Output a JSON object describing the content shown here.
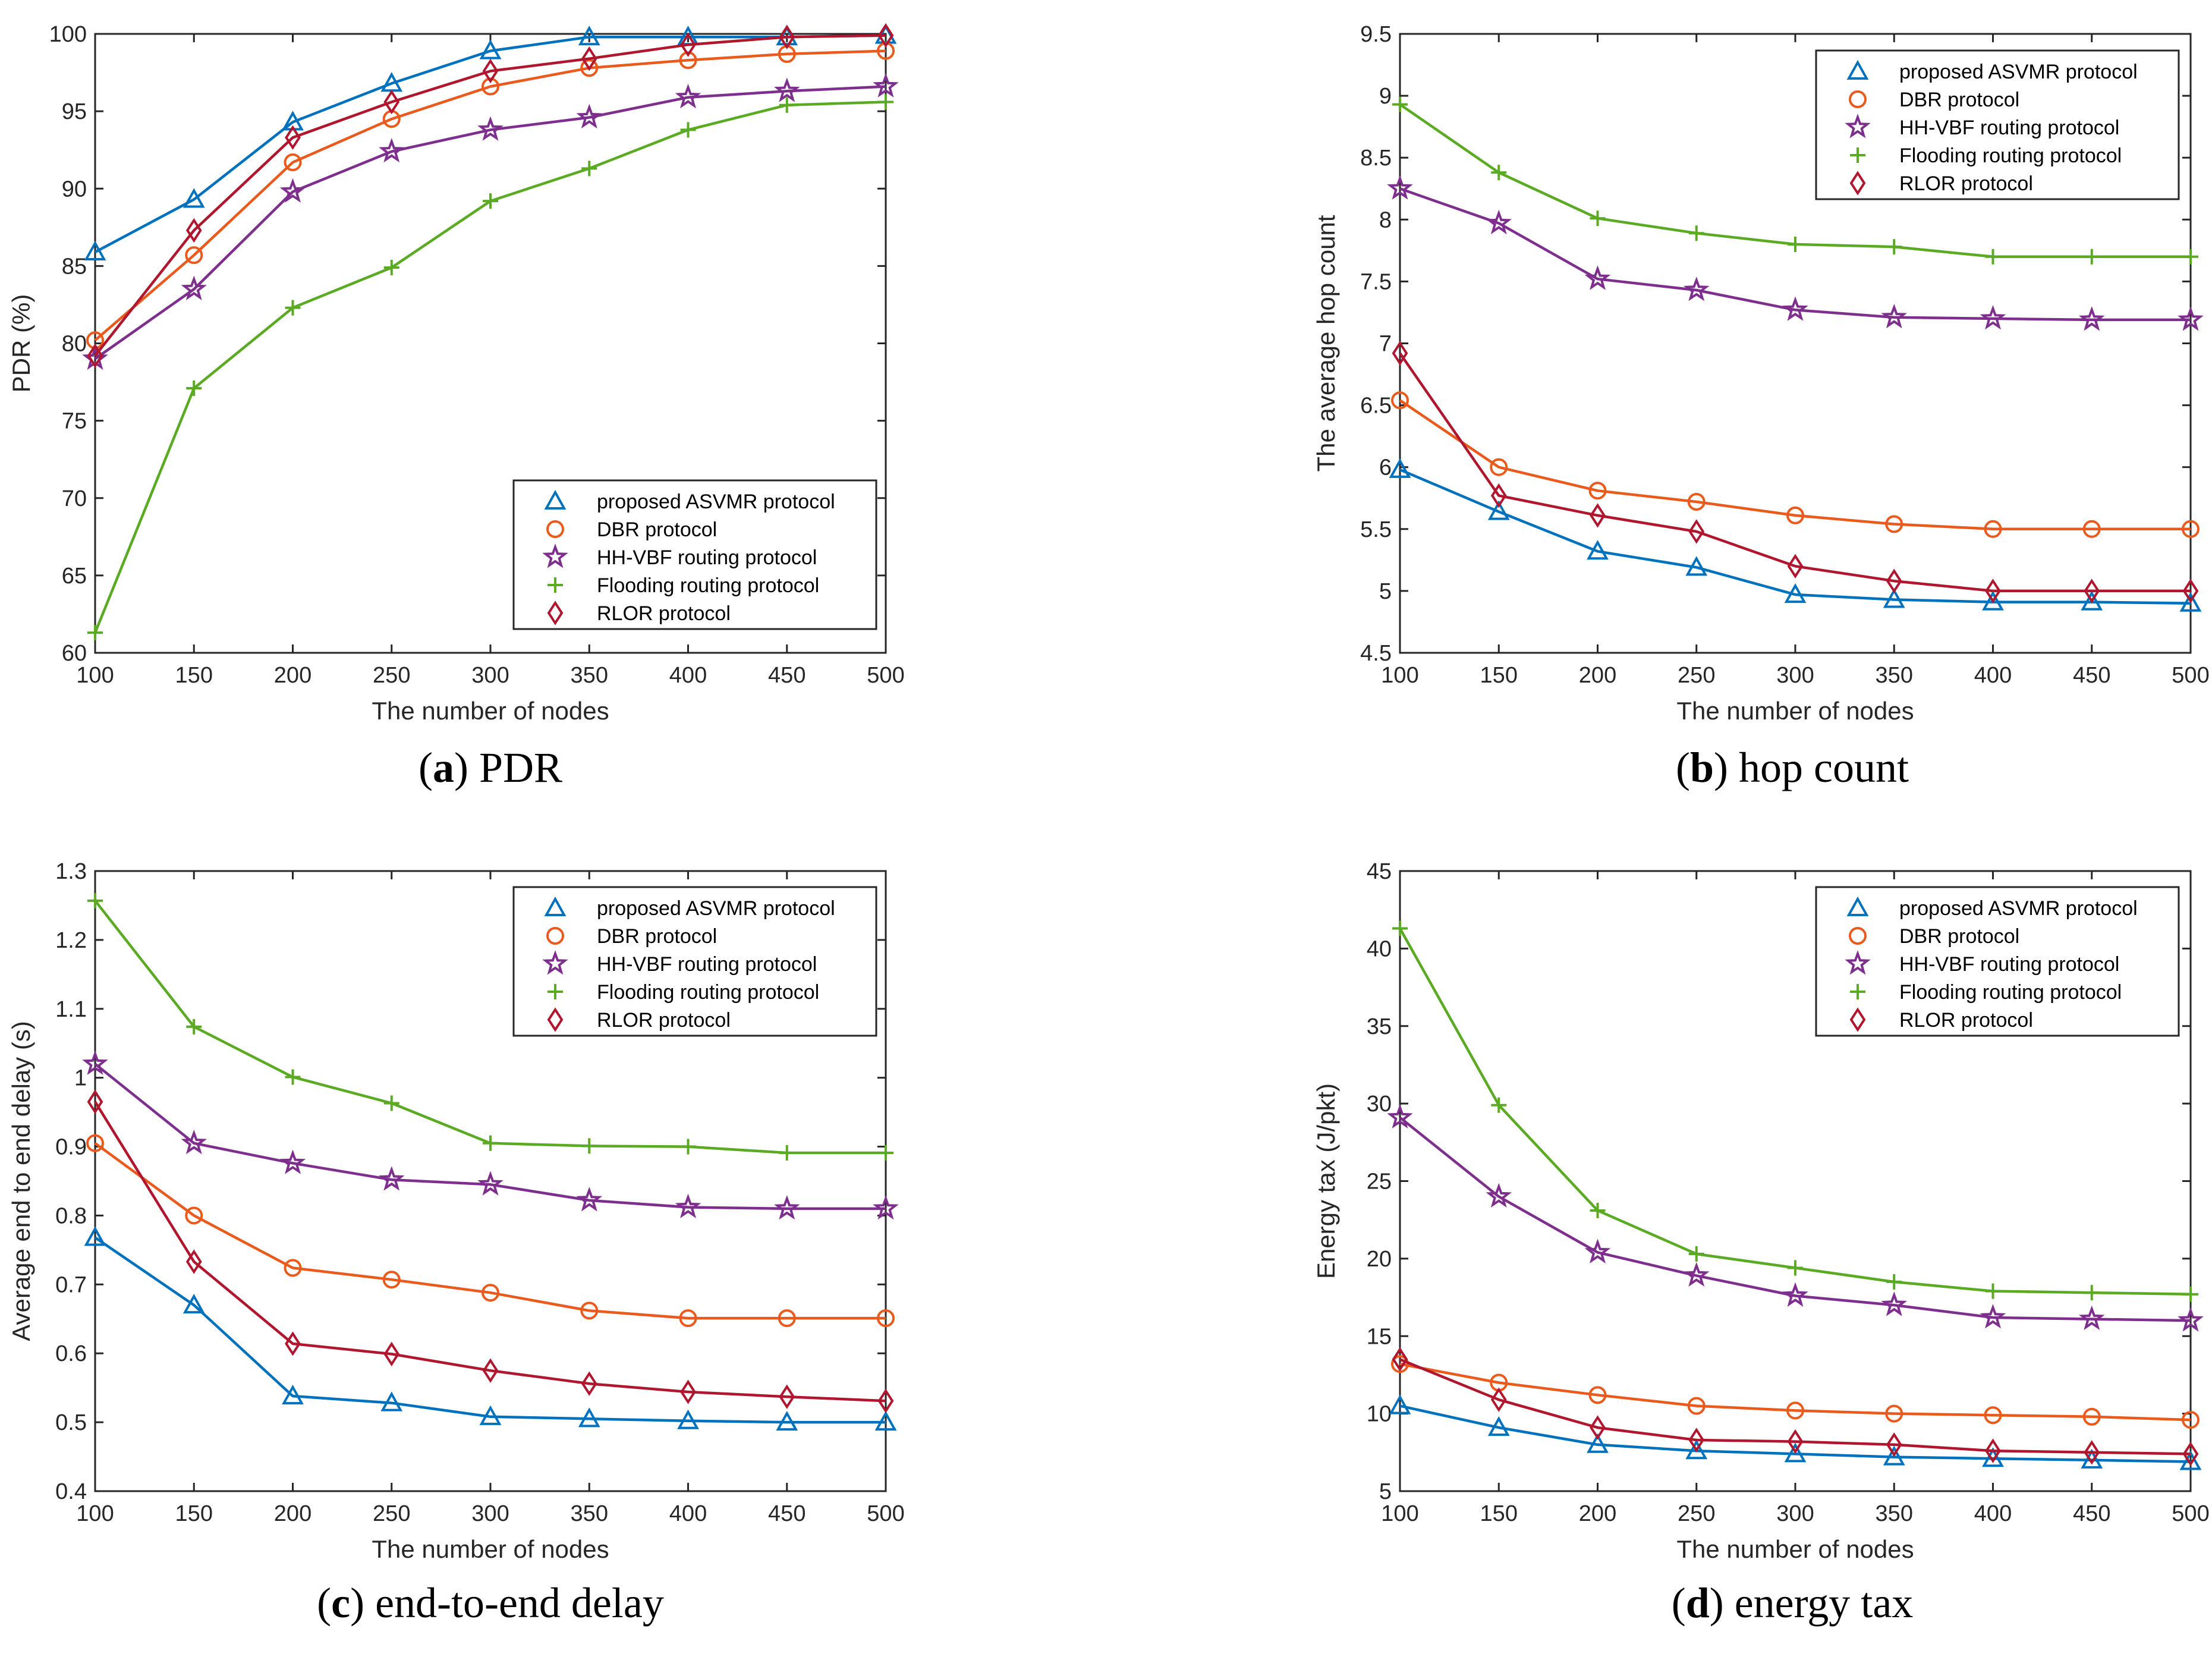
{
  "chart_data": [
    {
      "type": "line",
      "title": "PDR",
      "label_letter": "a",
      "xlabel": "The number of nodes",
      "ylabel": "PDR (%)",
      "xlim": [
        100,
        500
      ],
      "ylim": [
        60,
        100
      ],
      "x": [
        100,
        150,
        200,
        250,
        300,
        350,
        400,
        450,
        500
      ],
      "xticks": [
        "100",
        "150",
        "200",
        "250",
        "300",
        "350",
        "400",
        "450",
        "500"
      ],
      "yticks": [
        "60",
        "65",
        "70",
        "75",
        "80",
        "85",
        "90",
        "95",
        "100"
      ],
      "ytick_values": [
        60,
        65,
        70,
        75,
        80,
        85,
        90,
        95,
        100
      ],
      "legend_position": "bottom-right",
      "series": [
        {
          "name": "proposed ASVMR protocol",
          "marker": "triangle",
          "color": "#0072BD",
          "values": [
            85.9,
            89.3,
            94.3,
            96.8,
            98.9,
            99.8,
            99.8,
            99.8,
            99.9
          ]
        },
        {
          "name": "DBR protocol",
          "marker": "circle",
          "color": "#EA5A1C",
          "values": [
            80.2,
            85.7,
            91.7,
            94.5,
            96.6,
            97.8,
            98.3,
            98.7,
            98.9
          ]
        },
        {
          "name": "HH-VBF routing protocol",
          "marker": "star",
          "color": "#7E2F8E",
          "values": [
            79.0,
            83.5,
            89.8,
            92.4,
            93.8,
            94.6,
            95.9,
            96.3,
            96.6
          ]
        },
        {
          "name": "Flooding routing protocol",
          "marker": "plus",
          "color": "#5AAA23",
          "values": [
            61.3,
            77.1,
            82.3,
            84.9,
            89.2,
            91.3,
            93.8,
            95.4,
            95.6
          ]
        },
        {
          "name": "RLOR protocol",
          "marker": "diamond",
          "color": "#B0162E",
          "values": [
            79.2,
            87.3,
            93.3,
            95.6,
            97.6,
            98.4,
            99.3,
            99.8,
            99.9
          ]
        }
      ]
    },
    {
      "type": "line",
      "title": "hop count",
      "label_letter": "b",
      "xlabel": "The number of nodes",
      "ylabel": "The average hop count",
      "xlim": [
        100,
        500
      ],
      "ylim": [
        4.5,
        9.5
      ],
      "x": [
        100,
        150,
        200,
        250,
        300,
        350,
        400,
        450,
        500
      ],
      "xticks": [
        "100",
        "150",
        "200",
        "250",
        "300",
        "350",
        "400",
        "450",
        "500"
      ],
      "yticks": [
        "4.5",
        "5",
        "5.5",
        "6",
        "6.5",
        "7",
        "7.5",
        "8",
        "8.5",
        "9",
        "9.5"
      ],
      "ytick_values": [
        4.5,
        5,
        5.5,
        6,
        6.5,
        7,
        7.5,
        8,
        8.5,
        9,
        9.5
      ],
      "legend_position": "top-right",
      "series": [
        {
          "name": "proposed ASVMR protocol",
          "marker": "triangle",
          "color": "#0072BD",
          "values": [
            5.98,
            5.64,
            5.32,
            5.19,
            4.97,
            4.93,
            4.91,
            4.91,
            4.9
          ]
        },
        {
          "name": "DBR protocol",
          "marker": "circle",
          "color": "#EA5A1C",
          "values": [
            6.54,
            6.0,
            5.81,
            5.72,
            5.61,
            5.54,
            5.5,
            5.5,
            5.5
          ]
        },
        {
          "name": "HH-VBF routing protocol",
          "marker": "star",
          "color": "#7E2F8E",
          "values": [
            8.25,
            7.97,
            7.52,
            7.43,
            7.27,
            7.21,
            7.2,
            7.19,
            7.19
          ]
        },
        {
          "name": "Flooding routing protocol",
          "marker": "plus",
          "color": "#5AAA23",
          "values": [
            8.93,
            8.38,
            8.01,
            7.89,
            7.8,
            7.78,
            7.7,
            7.7,
            7.7
          ]
        },
        {
          "name": "RLOR protocol",
          "marker": "diamond",
          "color": "#B0162E",
          "values": [
            6.92,
            5.77,
            5.61,
            5.48,
            5.2,
            5.08,
            5.0,
            5.0,
            5.0
          ]
        }
      ]
    },
    {
      "type": "line",
      "title": "end-to-end delay",
      "label_letter": "c",
      "xlabel": "The number of nodes",
      "ylabel": "Average end to end delay (s)",
      "xlim": [
        100,
        500
      ],
      "ylim": [
        0.4,
        1.3
      ],
      "x": [
        100,
        150,
        200,
        250,
        300,
        350,
        400,
        450,
        500
      ],
      "xticks": [
        "100",
        "150",
        "200",
        "250",
        "300",
        "350",
        "400",
        "450",
        "500"
      ],
      "yticks": [
        "0.4",
        "0.5",
        "0.6",
        "0.7",
        "0.8",
        "0.9",
        "1",
        "1.1",
        "1.2",
        "1.3"
      ],
      "ytick_values": [
        0.4,
        0.5,
        0.6,
        0.7,
        0.8,
        0.9,
        1.0,
        1.1,
        1.2,
        1.3
      ],
      "legend_position": "top-right",
      "series": [
        {
          "name": "proposed ASVMR protocol",
          "marker": "triangle",
          "color": "#0072BD",
          "values": [
            0.768,
            0.67,
            0.538,
            0.528,
            0.508,
            0.505,
            0.502,
            0.5,
            0.5
          ]
        },
        {
          "name": "DBR protocol",
          "marker": "circle",
          "color": "#EA5A1C",
          "values": [
            0.905,
            0.8,
            0.724,
            0.707,
            0.688,
            0.662,
            0.651,
            0.651,
            0.651
          ]
        },
        {
          "name": "HH-VBF routing protocol",
          "marker": "star",
          "color": "#7E2F8E",
          "values": [
            1.02,
            0.905,
            0.876,
            0.852,
            0.845,
            0.822,
            0.812,
            0.81,
            0.81
          ]
        },
        {
          "name": "Flooding routing protocol",
          "marker": "plus",
          "color": "#5AAA23",
          "values": [
            1.257,
            1.074,
            1.001,
            0.963,
            0.905,
            0.901,
            0.9,
            0.891,
            0.891
          ]
        },
        {
          "name": "RLOR protocol",
          "marker": "diamond",
          "color": "#B0162E",
          "values": [
            0.965,
            0.733,
            0.614,
            0.599,
            0.575,
            0.556,
            0.544,
            0.537,
            0.531
          ]
        }
      ]
    },
    {
      "type": "line",
      "title": "energy tax",
      "label_letter": "d",
      "xlabel": "The number of nodes",
      "ylabel": "Energy tax (J/pkt)",
      "xlim": [
        100,
        500
      ],
      "ylim": [
        5,
        45
      ],
      "x": [
        100,
        150,
        200,
        250,
        300,
        350,
        400,
        450,
        500
      ],
      "xticks": [
        "100",
        "150",
        "200",
        "250",
        "300",
        "350",
        "400",
        "450",
        "500"
      ],
      "yticks": [
        "5",
        "10",
        "15",
        "20",
        "25",
        "30",
        "35",
        "40",
        "45"
      ],
      "ytick_values": [
        5,
        10,
        15,
        20,
        25,
        30,
        35,
        40,
        45
      ],
      "legend_position": "top-right",
      "series": [
        {
          "name": "proposed ASVMR protocol",
          "marker": "triangle",
          "color": "#0072BD",
          "values": [
            10.5,
            9.1,
            8.0,
            7.6,
            7.4,
            7.2,
            7.1,
            7.0,
            6.9
          ]
        },
        {
          "name": "DBR protocol",
          "marker": "circle",
          "color": "#EA5A1C",
          "values": [
            13.2,
            12.0,
            11.2,
            10.5,
            10.2,
            10.0,
            9.9,
            9.8,
            9.6
          ]
        },
        {
          "name": "HH-VBF routing protocol",
          "marker": "star",
          "color": "#7E2F8E",
          "values": [
            29.1,
            24.0,
            20.4,
            18.9,
            17.6,
            17.0,
            16.2,
            16.1,
            16.0
          ]
        },
        {
          "name": "Flooding routing protocol",
          "marker": "plus",
          "color": "#5AAA23",
          "values": [
            41.3,
            29.9,
            23.1,
            20.3,
            19.4,
            18.5,
            17.9,
            17.8,
            17.7
          ]
        },
        {
          "name": "RLOR protocol",
          "marker": "diamond",
          "color": "#B0162E",
          "values": [
            13.5,
            10.9,
            9.1,
            8.3,
            8.2,
            8.0,
            7.6,
            7.5,
            7.4
          ]
        }
      ]
    }
  ]
}
